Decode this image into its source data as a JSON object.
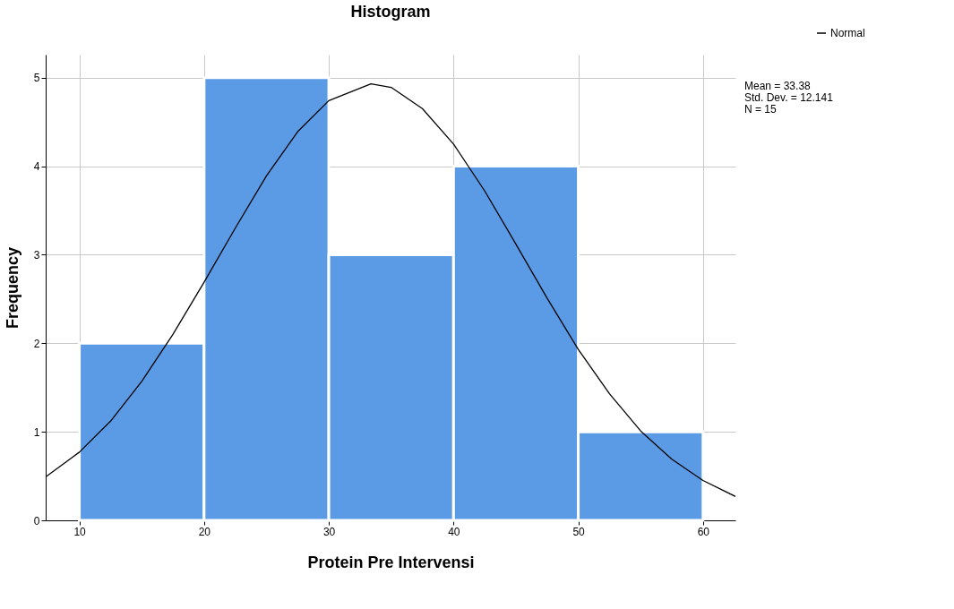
{
  "chart_data": {
    "type": "histogram",
    "title": "Histogram",
    "xlabel": "Protein Pre Intervensi",
    "ylabel": "Frequency",
    "xlim": [
      7.3,
      62.6
    ],
    "xticks": [
      10,
      20,
      30,
      40,
      50,
      60
    ],
    "ylim": [
      0,
      5.26
    ],
    "yticks": [
      0,
      1,
      2,
      3,
      4,
      5
    ],
    "grid": true,
    "legend": "top right",
    "annotations": [
      "Mean = 33.38",
      "Std. Dev. = 12.141",
      "N = 15"
    ],
    "series": [
      {
        "color": "#5b9be6",
        "bins": [
          10,
          20,
          30,
          40,
          50,
          60
        ],
        "values": [
          2,
          5,
          3,
          4,
          1
        ]
      },
      {
        "type": "line",
        "name": "Normal",
        "color": "#000000",
        "x": [
          7.3,
          10,
          12.5,
          15,
          17.5,
          20,
          22.5,
          25,
          27.5,
          30,
          33.38,
          35,
          37.5,
          40,
          42.5,
          45,
          47.5,
          50,
          52.5,
          55,
          57.5,
          60,
          62.6
        ],
        "values": [
          0.49,
          0.77,
          1.12,
          1.57,
          2.1,
          2.69,
          3.3,
          3.89,
          4.39,
          4.74,
          4.93,
          4.89,
          4.65,
          4.25,
          3.72,
          3.12,
          2.51,
          1.93,
          1.43,
          1.01,
          0.69,
          0.45,
          0.27
        ]
      }
    ]
  }
}
